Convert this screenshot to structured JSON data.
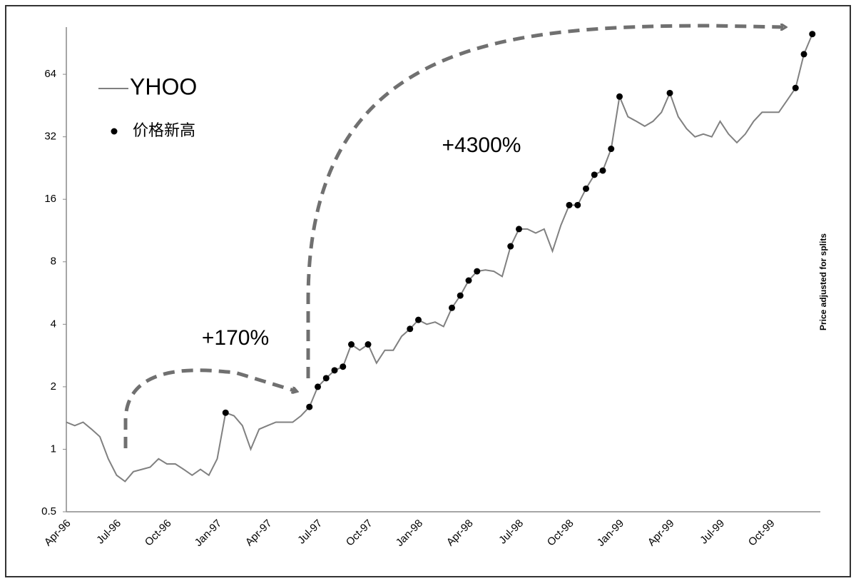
{
  "chart_data": {
    "type": "line",
    "log_scale": true,
    "grid": false,
    "legend": "top-left",
    "annotations": [
      "+170%",
      "+4300%"
    ],
    "y2_title": "Price adjusted for splits",
    "categories": [
      "Apr-96",
      null,
      null,
      null,
      null,
      null,
      "Jul-96",
      null,
      null,
      null,
      null,
      null,
      "Oct-96",
      null,
      null,
      null,
      null,
      null,
      "Jan-97",
      null,
      null,
      null,
      null,
      null,
      "Apr-97",
      null,
      null,
      null,
      null,
      null,
      "Jul-97",
      null,
      null,
      null,
      null,
      null,
      "Oct-97",
      null,
      null,
      null,
      null,
      null,
      "Jan-98",
      null,
      null,
      null,
      null,
      null,
      "Apr-98",
      null,
      null,
      null,
      null,
      null,
      "Jul-98",
      null,
      null,
      null,
      null,
      null,
      "Oct-98",
      null,
      null,
      null,
      null,
      null,
      "Jan-99",
      null,
      null,
      null,
      null,
      null,
      "Apr-99",
      null,
      null,
      null,
      null,
      null,
      "Jul-99",
      null,
      null,
      null,
      null,
      null,
      "Oct-99",
      null,
      null,
      null,
      null,
      null
    ],
    "series": [
      {
        "name": "YHOO",
        "color": "#808080",
        "style": "line",
        "values": [
          1.35,
          1.3,
          1.35,
          1.25,
          1.15,
          0.9,
          0.75,
          0.7,
          0.78,
          0.8,
          0.82,
          0.9,
          0.85,
          0.85,
          0.8,
          0.75,
          0.8,
          0.75,
          0.9,
          1.5,
          1.45,
          1.3,
          1.0,
          1.25,
          1.3,
          1.35,
          1.35,
          1.35,
          1.45,
          1.6,
          2.0,
          2.2,
          2.4,
          2.5,
          3.2,
          3.0,
          3.2,
          2.6,
          3.0,
          3.0,
          3.5,
          3.8,
          4.2,
          4.0,
          4.1,
          3.9,
          4.8,
          5.5,
          6.5,
          7.2,
          7.3,
          7.2,
          6.8,
          9.5,
          11.5,
          11.5,
          11.0,
          11.5,
          9.0,
          12,
          15,
          15,
          18,
          21,
          22,
          28,
          50,
          40,
          38,
          36,
          38,
          42,
          52,
          40,
          35,
          32,
          33,
          32,
          38,
          33,
          30,
          33,
          38,
          42,
          42,
          42,
          48,
          55,
          80,
          100
        ]
      },
      {
        "name": "价格新高",
        "color": "#000000",
        "style": "markers",
        "values": [
          null,
          null,
          null,
          null,
          null,
          null,
          null,
          null,
          null,
          null,
          null,
          null,
          null,
          null,
          null,
          null,
          null,
          null,
          null,
          1.5,
          null,
          null,
          null,
          null,
          null,
          null,
          null,
          null,
          null,
          1.6,
          2.0,
          2.2,
          2.4,
          2.5,
          3.2,
          null,
          3.2,
          null,
          null,
          null,
          null,
          3.8,
          4.2,
          null,
          null,
          null,
          4.8,
          5.5,
          6.5,
          7.2,
          null,
          null,
          null,
          9.5,
          11.5,
          null,
          null,
          null,
          null,
          null,
          15,
          15,
          18,
          21,
          22,
          28,
          50,
          null,
          null,
          null,
          null,
          null,
          52,
          null,
          null,
          null,
          null,
          null,
          null,
          null,
          null,
          null,
          null,
          null,
          null,
          null,
          null,
          55,
          80,
          100
        ]
      }
    ],
    "ylim": [
      0.5,
      108
    ],
    "yticks": [
      0.5,
      1,
      2,
      4,
      8,
      16,
      32,
      64
    ]
  }
}
